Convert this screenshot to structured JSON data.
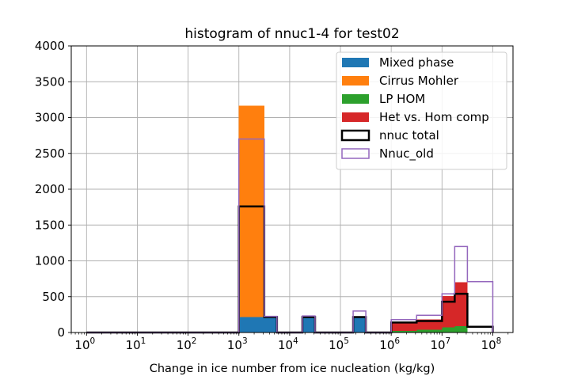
{
  "chart_data": {
    "type": "bar",
    "title": "histogram of nnuc1-4 for test02",
    "xlabel": "Change in ice number from ice nucleation (kg/kg)",
    "ylabel": "",
    "xscale": "log",
    "xlim": [
      0.5,
      250000000
    ],
    "ylim": [
      0,
      4000
    ],
    "grid": true,
    "legend_position": "top-right",
    "y_ticks": [
      0,
      500,
      1000,
      1500,
      2000,
      2500,
      3000,
      3500,
      4000
    ],
    "x_ticks": [
      {
        "base": "10",
        "exp": "0"
      },
      {
        "base": "10",
        "exp": "1"
      },
      {
        "base": "10",
        "exp": "2"
      },
      {
        "base": "10",
        "exp": "3"
      },
      {
        "base": "10",
        "exp": "4"
      },
      {
        "base": "10",
        "exp": "5"
      },
      {
        "base": "10",
        "exp": "6"
      },
      {
        "base": "10",
        "exp": "7"
      },
      {
        "base": "10",
        "exp": "8"
      }
    ],
    "bin_edges": [
      1,
      1.778,
      3.162,
      5.623,
      10,
      17.78,
      31.62,
      56.23,
      100,
      177.8,
      316.2,
      562.3,
      1000,
      1778,
      3162,
      5623,
      10000,
      17780,
      31620,
      56230,
      100000,
      177800,
      316200,
      562300,
      1000000,
      1778000,
      3162000,
      5623000,
      10000000,
      17780000,
      31620000,
      56230000,
      100000000
    ],
    "stacked_series": [
      {
        "name": "Mixed phase",
        "color": "#1f77b4",
        "values": [
          0,
          0,
          0,
          0,
          0,
          0,
          0,
          0,
          0,
          0,
          0,
          0,
          215,
          215,
          215,
          0,
          0,
          215,
          0,
          0,
          0,
          215,
          0,
          0,
          0,
          0,
          0,
          0,
          0,
          0,
          0,
          0
        ]
      },
      {
        "name": "Cirrus Mohler",
        "color": "#ff7f0e",
        "values": [
          0,
          0,
          0,
          0,
          0,
          0,
          0,
          0,
          0,
          0,
          0,
          0,
          2950,
          2950,
          0,
          0,
          0,
          0,
          0,
          0,
          0,
          0,
          0,
          0,
          0,
          0,
          0,
          0,
          0,
          0,
          0,
          0
        ]
      },
      {
        "name": "LP HOM",
        "color": "#2ca02c",
        "values": [
          0,
          0,
          0,
          0,
          0,
          0,
          0,
          0,
          0,
          0,
          0,
          0,
          0,
          0,
          0,
          0,
          0,
          0,
          0,
          0,
          0,
          0,
          0,
          0,
          20,
          20,
          40,
          40,
          70,
          90,
          0,
          0
        ]
      },
      {
        "name": "Het vs. Hom comp",
        "color": "#d62728",
        "values": [
          0,
          0,
          0,
          0,
          0,
          0,
          0,
          0,
          0,
          0,
          0,
          0,
          0,
          0,
          0,
          0,
          0,
          0,
          0,
          0,
          0,
          0,
          0,
          0,
          130,
          130,
          140,
          140,
          440,
          610,
          0,
          0
        ]
      }
    ],
    "step_series": [
      {
        "name": "nnuc total",
        "color": "#000000",
        "width": 2.5,
        "values": [
          0,
          0,
          0,
          0,
          0,
          0,
          0,
          0,
          0,
          0,
          0,
          0,
          1760,
          1760,
          215,
          0,
          0,
          215,
          0,
          0,
          0,
          215,
          0,
          0,
          140,
          140,
          160,
          160,
          430,
          540,
          80,
          80
        ]
      },
      {
        "name": "Nnuc_old",
        "color": "#9467bd",
        "width": 1.5,
        "values": [
          0,
          0,
          0,
          0,
          0,
          0,
          0,
          0,
          0,
          0,
          0,
          0,
          2700,
          2700,
          225,
          0,
          0,
          230,
          0,
          0,
          0,
          300,
          0,
          0,
          180,
          180,
          240,
          240,
          540,
          1200,
          710,
          710
        ]
      }
    ]
  },
  "legend": {
    "items": [
      {
        "label": "Mixed phase",
        "color": "#1f77b4",
        "style": "filled"
      },
      {
        "label": "Cirrus Mohler",
        "color": "#ff7f0e",
        "style": "filled"
      },
      {
        "label": "LP HOM",
        "color": "#2ca02c",
        "style": "filled"
      },
      {
        "label": "Het vs. Hom comp",
        "color": "#d62728",
        "style": "filled"
      },
      {
        "label": "nnuc total",
        "color": "#000000",
        "style": "outline-thick"
      },
      {
        "label": "Nnuc_old",
        "color": "#9467bd",
        "style": "outline-thin"
      }
    ]
  },
  "colors": {
    "grid": "#b0b0b0",
    "axis": "#000000",
    "background": "#ffffff"
  }
}
